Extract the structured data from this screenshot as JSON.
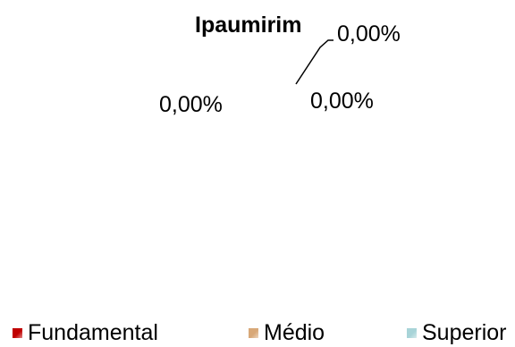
{
  "chart_data": {
    "type": "pie",
    "title": "Ipaumirim",
    "categories": [
      "Fundamental",
      "Médio",
      "Superior"
    ],
    "values": [
      0,
      0,
      0
    ],
    "data_labels": [
      "0,00%",
      "0,00%",
      "0,00%"
    ],
    "colors": [
      "#c00000",
      "#d8a878",
      "#a8d4d8"
    ],
    "legend": {
      "position": "bottom",
      "entries": [
        "Fundamental",
        "Médio",
        "Superior"
      ]
    }
  }
}
